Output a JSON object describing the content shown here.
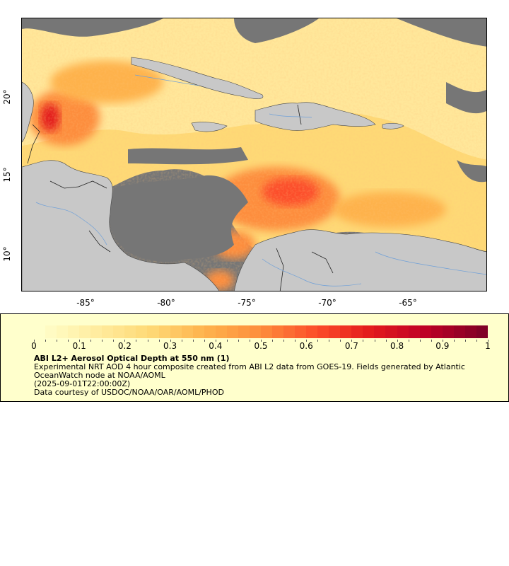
{
  "map": {
    "x_ticks": [
      "-85°",
      "-80°",
      "-75°",
      "-70°",
      "-65°"
    ],
    "y_ticks": [
      "20°",
      "15°",
      "10°"
    ],
    "colors": {
      "ocean_nodata": "#767676",
      "land": "#c8c8c8",
      "borders": "#222222",
      "rivers": "#6fa0d8"
    }
  },
  "colorbar": {
    "ticks": [
      "0",
      "0.1",
      "0.2",
      "0.3",
      "0.4",
      "0.5",
      "0.6",
      "0.7",
      "0.8",
      "0.9",
      "1"
    ],
    "range": [
      0,
      1
    ],
    "colors": [
      "#ffffcc",
      "#ffeda0",
      "#fed976",
      "#feb24c",
      "#fd8d3c",
      "#fc4e2a",
      "#e31a1c",
      "#bd0026",
      "#800026"
    ]
  },
  "legend": {
    "title": "ABI L2+ Aerosol Optical Depth at 550 nm (1)",
    "line1": "Experimental NRT AOD 4 hour composite created from ABI L2 data from GOES-19. Fields generated by Atlantic",
    "line2": "OceanWatch node at NOAA/AOML",
    "line3": "(2025-09-01T22:00:00Z)",
    "line4": "Data courtesy of USDOC/NOAA/OAR/AOML/PHOD"
  }
}
